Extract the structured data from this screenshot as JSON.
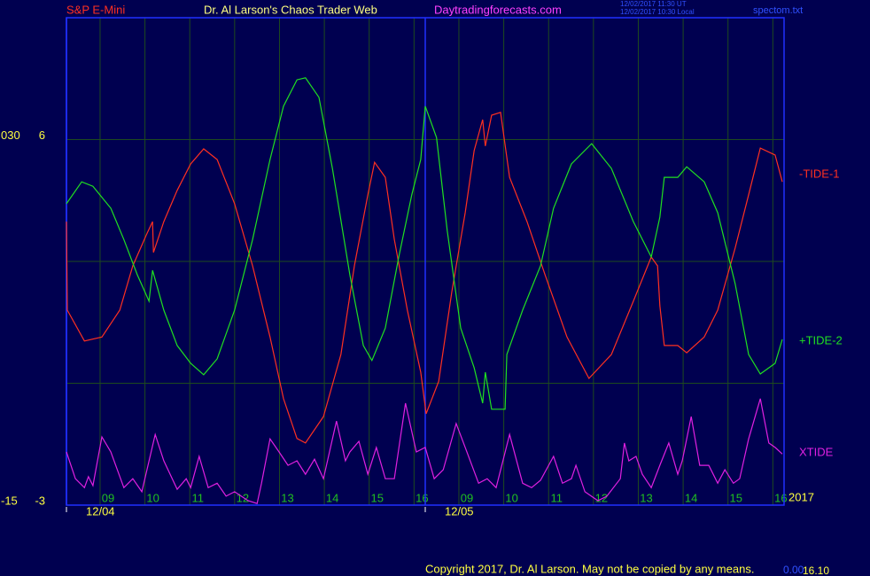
{
  "chart_data": {
    "type": "line",
    "title": "Dr. Al Larson's Chaos Trader Web",
    "instrument": "S&P E-Mini",
    "website": "Daytradingforecasts.com",
    "timestamps": [
      "12/02/2017 11:30 UT",
      "12/02/2017 10:30 Local"
    ],
    "file": "spectom.txt",
    "year": "2017",
    "copyright": "Copyright 2017, Dr. Al Larson. May not be copied by any means.",
    "footer_values": [
      "0.00",
      "16.10"
    ],
    "xlim": [
      0,
      16
    ],
    "ylim": [
      -3,
      9
    ],
    "y2lim": [
      -15,
      45
    ],
    "yticks": [
      -3,
      6
    ],
    "y2ticks": [
      {
        "value": 30,
        "label": "030"
      },
      -15
    ],
    "ygrid": [
      0,
      3,
      6
    ],
    "grid": true,
    "xticks": [
      {
        "value": 0.75,
        "label": "09"
      },
      {
        "value": 1.75,
        "label": "10"
      },
      {
        "value": 2.75,
        "label": "11"
      },
      {
        "value": 3.75,
        "label": "12"
      },
      {
        "value": 4.75,
        "label": "13"
      },
      {
        "value": 5.75,
        "label": "14"
      },
      {
        "value": 6.75,
        "label": "15"
      },
      {
        "value": 7.75,
        "label": "16"
      },
      {
        "value": 8.75,
        "label": "09"
      },
      {
        "value": 9.75,
        "label": "10"
      },
      {
        "value": 10.75,
        "label": "11"
      },
      {
        "value": 11.75,
        "label": "12"
      },
      {
        "value": 12.75,
        "label": "13"
      },
      {
        "value": 13.75,
        "label": "14"
      },
      {
        "value": 14.75,
        "label": "15"
      },
      {
        "value": 15.75,
        "label": "16"
      }
    ],
    "date_ticks": [
      {
        "value": 0,
        "label": "12/04"
      },
      {
        "value": 8,
        "label": "12/05"
      }
    ],
    "series": [
      {
        "name": "-TIDE-1",
        "color": "#ff3020",
        "x": [
          0,
          0.02,
          0.4,
          0.79,
          1.19,
          1.48,
          1.78,
          1.92,
          1.94,
          2.17,
          2.47,
          2.77,
          3.06,
          3.36,
          3.75,
          4.15,
          4.54,
          4.84,
          5.14,
          5.33,
          5.73,
          6.12,
          6.42,
          6.72,
          6.87,
          7.11,
          7.31,
          7.6,
          7.9,
          8.02,
          8.3,
          8.59,
          8.89,
          9.09,
          9.28,
          9.34,
          9.48,
          9.68,
          9.88,
          10.27,
          10.67,
          11.16,
          11.65,
          12.15,
          12.64,
          13.04,
          13.18,
          13.23,
          13.33,
          13.63,
          13.83,
          14.22,
          14.52,
          14.91,
          15.21,
          15.47,
          15.8,
          15.96
        ],
        "values": [
          3.98,
          1.8,
          1.04,
          1.14,
          1.8,
          2.89,
          3.65,
          3.98,
          3.22,
          3.98,
          4.75,
          5.4,
          5.77,
          5.51,
          4.42,
          2.89,
          1.14,
          -0.38,
          -1.36,
          -1.47,
          -0.82,
          0.71,
          2.89,
          4.64,
          5.44,
          5.07,
          3.54,
          1.8,
          0.27,
          -0.75,
          0.05,
          2.24,
          4.2,
          5.73,
          6.49,
          5.84,
          6.6,
          6.67,
          5.07,
          3.98,
          2.67,
          1.14,
          0.12,
          0.71,
          2.02,
          3.11,
          2.89,
          1.91,
          0.93,
          0.93,
          0.75,
          1.14,
          1.8,
          3.33,
          4.64,
          5.79,
          5.62,
          4.96
        ]
      },
      {
        "name": "+TIDE-2",
        "color": "#20e020",
        "x": [
          0,
          0.34,
          0.59,
          0.99,
          1.28,
          1.58,
          1.84,
          1.92,
          2.17,
          2.47,
          2.77,
          3.06,
          3.36,
          3.75,
          4.15,
          4.54,
          4.84,
          5.14,
          5.33,
          5.63,
          5.93,
          6.32,
          6.62,
          6.81,
          7.11,
          7.41,
          7.7,
          7.9,
          8,
          8.25,
          8.49,
          8.79,
          9.09,
          9.28,
          9.34,
          9.48,
          9.78,
          9.82,
          10.17,
          10.57,
          10.86,
          11.26,
          11.71,
          12.15,
          12.64,
          13.04,
          13.23,
          13.33,
          13.63,
          13.83,
          14.22,
          14.52,
          14.91,
          15.21,
          15.47,
          15.8,
          15.96
        ],
        "values": [
          4.42,
          4.96,
          4.85,
          4.31,
          3.54,
          2.67,
          2.02,
          2.78,
          1.8,
          0.93,
          0.49,
          0.21,
          0.6,
          1.8,
          3.54,
          5.51,
          6.82,
          7.47,
          7.52,
          7.04,
          5.29,
          2.67,
          0.93,
          0.56,
          1.36,
          3.11,
          4.64,
          5.51,
          6.82,
          6.05,
          3.76,
          1.36,
          0.38,
          -0.49,
          0.27,
          -0.64,
          -0.64,
          0.71,
          1.8,
          2.89,
          4.31,
          5.4,
          5.9,
          5.29,
          3.98,
          3.11,
          4.09,
          5.07,
          5.07,
          5.33,
          4.96,
          4.2,
          2.45,
          0.71,
          0.23,
          0.49,
          1.08
        ]
      },
      {
        "name": "XTIDE",
        "color": "#e020e0",
        "x": [
          0,
          0.2,
          0.4,
          0.49,
          0.59,
          0.79,
          0.99,
          1.28,
          1.48,
          1.68,
          1.98,
          2.17,
          2.47,
          2.67,
          2.77,
          2.96,
          3.16,
          3.36,
          3.56,
          3.75,
          4.05,
          4.25,
          4.35,
          4.54,
          4.74,
          4.94,
          5.14,
          5.33,
          5.53,
          5.73,
          6.02,
          6.22,
          6.32,
          6.52,
          6.72,
          6.91,
          7.11,
          7.31,
          7.56,
          7.8,
          8,
          8.2,
          8.4,
          8.69,
          8.89,
          9.19,
          9.38,
          9.58,
          9.88,
          10.17,
          10.37,
          10.57,
          10.86,
          11.06,
          11.26,
          11.36,
          11.56,
          11.85,
          12.05,
          12.35,
          12.44,
          12.54,
          12.7,
          12.84,
          13.04,
          13.23,
          13.43,
          13.63,
          13.73,
          13.93,
          14.12,
          14.32,
          14.52,
          14.68,
          14.87,
          15.01,
          15.21,
          15.47,
          15.66,
          15.8,
          15.96
        ],
        "values": [
          -1.69,
          -2.35,
          -2.57,
          -2.3,
          -2.52,
          -1.32,
          -1.69,
          -2.57,
          -2.35,
          -2.67,
          -1.26,
          -1.91,
          -2.61,
          -2.35,
          -2.57,
          -1.8,
          -2.57,
          -2.46,
          -2.78,
          -2.67,
          -2.89,
          -2.96,
          -2.46,
          -1.37,
          -1.69,
          -2.02,
          -1.91,
          -2.24,
          -1.87,
          -2.35,
          -0.93,
          -1.91,
          -1.69,
          -1.43,
          -2.24,
          -1.58,
          -2.35,
          -2.35,
          -0.49,
          -1.69,
          -1.58,
          -2.35,
          -2.13,
          -0.99,
          -1.58,
          -2.46,
          -2.35,
          -2.57,
          -1.26,
          -2.46,
          -2.57,
          -2.39,
          -1.8,
          -2.46,
          -2.35,
          -2.02,
          -2.67,
          -2.89,
          -2.78,
          -2.35,
          -1.47,
          -1.91,
          -1.8,
          -2.24,
          -2.57,
          -2.02,
          -1.47,
          -2.24,
          -1.91,
          -0.82,
          -2.02,
          -2.02,
          -2.46,
          -2.13,
          -2.46,
          -2.35,
          -1.37,
          -0.38,
          -1.47,
          -1.58,
          -1.74
        ]
      }
    ]
  }
}
